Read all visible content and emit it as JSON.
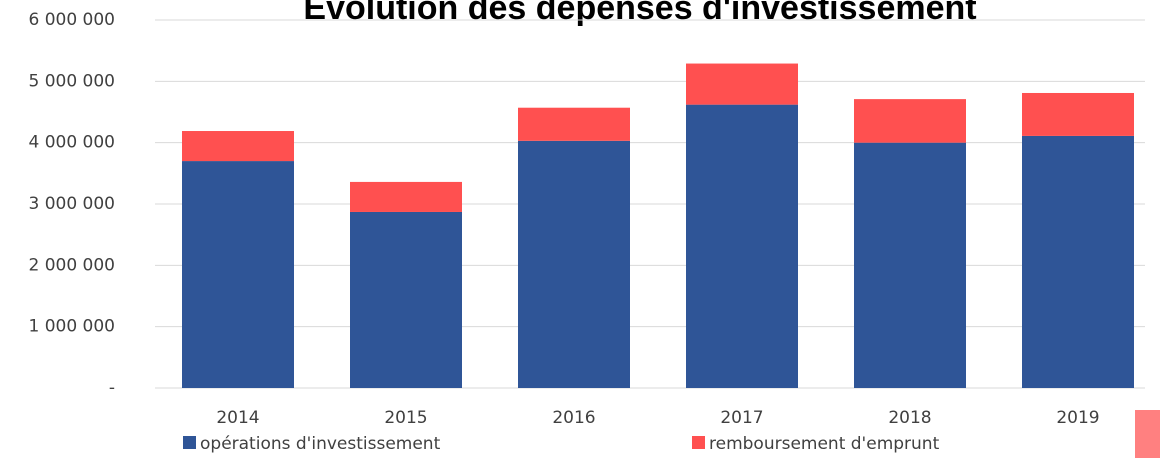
{
  "chart_data": {
    "type": "stacked_bar",
    "title": "Évolution des dépenses d'investissement",
    "categories": [
      "2014",
      "2015",
      "2016",
      "2017",
      "2018",
      "2019"
    ],
    "series": [
      {
        "name": "opérations d'investissement",
        "color": "#2f5597",
        "values": [
          3700000,
          2870000,
          4030000,
          4620000,
          4000000,
          4110000
        ]
      },
      {
        "name": "remboursement d'emprunt",
        "color": "#ff5050",
        "values": [
          490000,
          490000,
          540000,
          670000,
          710000,
          700000
        ]
      }
    ],
    "ylim": [
      0,
      6000000
    ],
    "yticks": [
      {
        "value": 0,
        "label": "-"
      },
      {
        "value": 1000000,
        "label": "1 000 000"
      },
      {
        "value": 2000000,
        "label": "2 000 000"
      },
      {
        "value": 3000000,
        "label": "3 000 000"
      },
      {
        "value": 4000000,
        "label": "4 000 000"
      },
      {
        "value": 5000000,
        "label": "5 000 000"
      },
      {
        "value": 6000000,
        "label": "6 000 000"
      }
    ],
    "grid": true
  }
}
